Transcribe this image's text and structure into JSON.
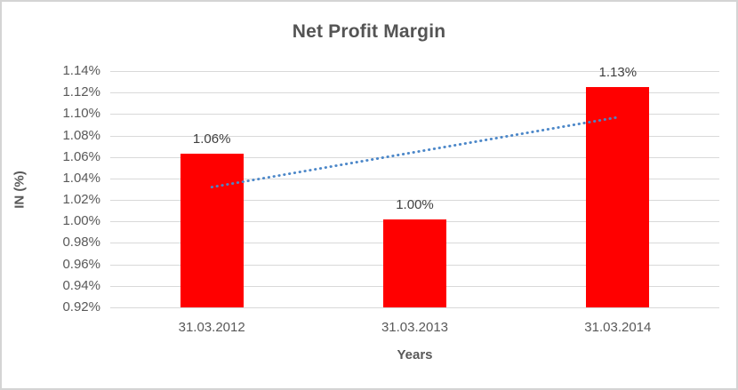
{
  "chart_data": {
    "type": "bar",
    "title": "Net Profit Margin",
    "xlabel": "Years",
    "ylabel": "IN (%)",
    "categories": [
      "31.03.2012",
      "31.03.2013",
      "31.03.2014"
    ],
    "values": [
      1.063,
      1.002,
      1.125
    ],
    "data_labels": [
      "1.06%",
      "1.00%",
      "1.13%"
    ],
    "ylim": [
      0.92,
      1.14
    ],
    "ytick_step": 0.02,
    "yticks": [
      {
        "value": 1.14,
        "label": "1.14%"
      },
      {
        "value": 1.12,
        "label": "1.12%"
      },
      {
        "value": 1.1,
        "label": "1.10%"
      },
      {
        "value": 1.08,
        "label": "1.08%"
      },
      {
        "value": 1.06,
        "label": "1.06%"
      },
      {
        "value": 1.04,
        "label": "1.04%"
      },
      {
        "value": 1.02,
        "label": "1.02%"
      },
      {
        "value": 1.0,
        "label": "1.00%"
      },
      {
        "value": 0.98,
        "label": "0.98%"
      },
      {
        "value": 0.96,
        "label": "0.96%"
      },
      {
        "value": 0.94,
        "label": "0.94%"
      },
      {
        "value": 0.92,
        "label": "0.92%"
      }
    ],
    "grid": true,
    "legend": "none",
    "trendline": {
      "style": "dotted",
      "points": [
        {
          "category_index": 0,
          "value": 1.032
        },
        {
          "category_index": 2,
          "value": 1.097
        }
      ]
    },
    "colors": {
      "bar": "#FF0000",
      "trendline": "#4A86C8",
      "gridline": "#D9D9D9",
      "tick_text": "#595959",
      "label_text": "#404040",
      "title_text": "#545454",
      "frame_border": "#D4D4D4"
    }
  }
}
